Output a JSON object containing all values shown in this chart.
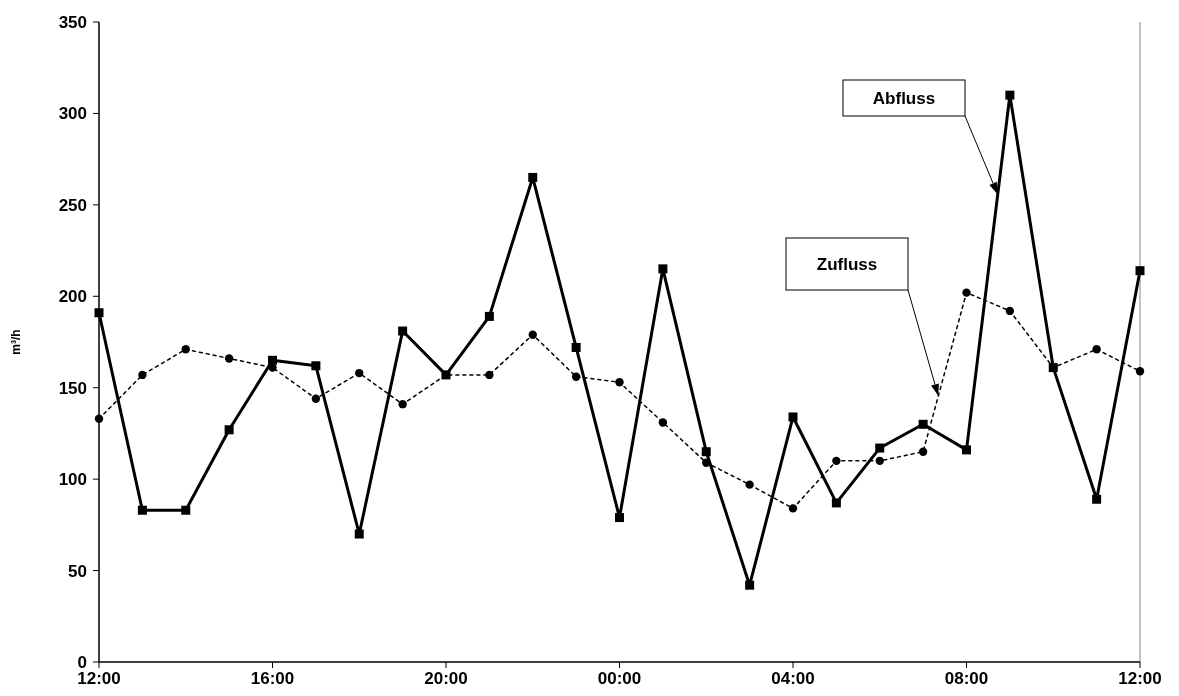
{
  "chart_data": {
    "type": "line",
    "ylabel": "m³/h",
    "categories": [
      "12:00",
      null,
      null,
      null,
      "16:00",
      null,
      null,
      null,
      "20:00",
      null,
      null,
      null,
      "00:00",
      null,
      null,
      null,
      "04:00",
      null,
      null,
      null,
      "08:00",
      null,
      null,
      null,
      "12:00"
    ],
    "ylim": [
      0,
      350
    ],
    "yticks": [
      0,
      50,
      100,
      150,
      200,
      250,
      300,
      350
    ],
    "grid": false,
    "legend": false,
    "series": [
      {
        "name": "Abfluss",
        "color": "#000000",
        "marker": "square",
        "line_style": "solid",
        "values": [
          191,
          83,
          83,
          127,
          165,
          162,
          70,
          181,
          157,
          189,
          265,
          172,
          79,
          215,
          115,
          42,
          134,
          87,
          117,
          130,
          116,
          310,
          161,
          89,
          214
        ]
      },
      {
        "name": "Zufluss",
        "color": "#000000",
        "marker": "circle",
        "line_style": "dotted",
        "values": [
          133,
          157,
          171,
          166,
          161,
          144,
          158,
          141,
          157,
          157,
          179,
          156,
          153,
          131,
          109,
          97,
          84,
          110,
          110,
          115,
          202,
          192,
          161,
          171,
          159
        ]
      }
    ]
  }
}
